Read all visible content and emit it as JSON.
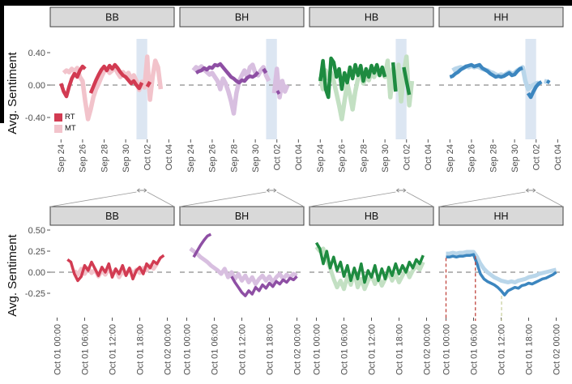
{
  "page": {
    "background": "#ffffff",
    "window_edge_color": "#000000"
  },
  "chart_data": [
    {
      "type": "line",
      "row": "overview",
      "title": "",
      "ylabel": "Avg. Sentiment",
      "facets": [
        "BB",
        "BH",
        "HB",
        "HH"
      ],
      "legend": {
        "position": "inside-first-panel",
        "items": [
          {
            "label": "RT",
            "color": "#d23b52"
          },
          {
            "label": "MT",
            "color": "#f2c3cb"
          }
        ]
      },
      "yticks": [
        {
          "label": "0.40",
          "v": 0.4
        },
        {
          "label": "0.00",
          "v": 0.0
        },
        {
          "label": "-0.40",
          "v": -0.4
        }
      ],
      "xticks": [
        {
          "label": "Sep 24",
          "v": 0
        },
        {
          "label": "Sep 26",
          "v": 2
        },
        {
          "label": "Sep 28",
          "v": 4
        },
        {
          "label": "Sep 30",
          "v": 6
        },
        {
          "label": "Oct 02",
          "v": 8
        },
        {
          "label": "Oct 04",
          "v": 10
        }
      ],
      "xlim": [
        -1,
        10.5
      ],
      "ylim": [
        -0.67,
        0.6
      ],
      "grid": false,
      "zero_line": 0,
      "highlight_band": {
        "x1": 7,
        "x2": 8,
        "color": "#dce6f2",
        "meaning": "zoomed region Oct 01"
      },
      "x0": 0,
      "dx": 0.25,
      "series": [
        {
          "facet": "BB",
          "name": "RT",
          "color": "#d23b52",
          "y": [
            0.02,
            -0.08,
            -0.14,
            -0.02,
            0.08,
            0.14,
            0.1,
            0.18,
            0.23,
            0.2,
            null,
            -0.1,
            -0.02,
            0.06,
            0.13,
            0.19,
            0.23,
            0.18,
            0.24,
            0.2,
            0.25,
            0.21,
            0.16,
            0.12,
            0.1,
            0.06,
            0.02,
            0.05,
            0.0,
            -0.04,
            0.03,
            null,
            -0.02,
            0.04,
            null,
            null,
            null,
            null,
            null,
            null,
            null,
            null,
            null
          ]
        },
        {
          "facet": "BB",
          "name": "MT",
          "color": "#f2c3cb",
          "y": [
            null,
            0.15,
            0.18,
            0.16,
            0.2,
            0.17,
            0.21,
            0.1,
            0.05,
            -0.2,
            -0.42,
            -0.3,
            -0.15,
            -0.05,
            0.02,
            0.1,
            0.17,
            0.2,
            0.15,
            0.18,
            0.22,
            0.15,
            0.1,
            0.16,
            0.12,
            0.15,
            0.08,
            0.12,
            0.05,
            -0.06,
            0.04,
            -0.03,
            0.35,
            -0.18,
            0.1,
            0.3,
            0.22,
            -0.05,
            null,
            null,
            null,
            null,
            null
          ]
        },
        {
          "facet": "BH",
          "name": "RT",
          "color": "#8e4fa4",
          "y": [
            -0.07,
            null,
            0.15,
            0.17,
            0.18,
            0.21,
            0.19,
            0.22,
            0.21,
            0.25,
            0.24,
            0.26,
            0.22,
            0.18,
            0.14,
            0.1,
            0.08,
            0.05,
            0.03,
            0.06,
            0.05,
            0.09,
            0.11,
            0.1,
            0.12,
            0.16,
            null,
            0.2,
            0.15,
            null,
            null,
            null,
            -0.1,
            -0.08,
            null,
            0.0,
            null,
            null,
            null,
            null,
            null,
            null,
            null
          ]
        },
        {
          "facet": "BH",
          "name": "MT",
          "color": "#d8bfe0",
          "y": [
            null,
            0.18,
            0.22,
            0.2,
            0.23,
            0.19,
            0.16,
            0.13,
            0.15,
            0.1,
            0.05,
            -0.05,
            0.08,
            0.02,
            -0.08,
            -0.2,
            -0.35,
            -0.1,
            0.05,
            0.12,
            0.18,
            0.1,
            0.22,
            0.25,
            0.15,
            0.12,
            0.18,
            0.22,
            0.12,
            0.05,
            null,
            -0.1,
            0.2,
            -0.15,
            0.05,
            -0.08,
            0.0,
            null,
            null,
            null,
            null,
            null,
            null
          ]
        },
        {
          "facet": "HB",
          "name": "RT",
          "color": "#1e8b40",
          "y": [
            0.05,
            0.3,
            -0.05,
            -0.15,
            0.33,
            0.28,
            0.1,
            0.2,
            -0.05,
            0.15,
            0.03,
            0.22,
            0.08,
            0.25,
            0.12,
            0.24,
            0.05,
            0.2,
            0.1,
            0.24,
            0.15,
            0.25,
            0.12,
            0.22,
            0.1,
            null,
            null,
            0.28,
            -0.08,
            null,
            null,
            0.22,
            0.05,
            -0.12,
            null,
            null,
            null,
            null,
            null,
            null,
            null,
            null,
            null
          ]
        },
        {
          "facet": "HB",
          "name": "MT",
          "color": "#c3e0c3",
          "y": [
            0.1,
            -0.05,
            0.18,
            0.08,
            0.15,
            0.05,
            -0.1,
            -0.25,
            -0.42,
            -0.2,
            0.02,
            -0.12,
            -0.3,
            -0.08,
            0.08,
            0.15,
            0.02,
            0.12,
            0.06,
            0.16,
            0.1,
            0.2,
            0.12,
            0.18,
            0.1,
            0.3,
            -0.15,
            0.2,
            -0.05,
            0.25,
            -0.2,
            0.15,
            0.35,
            -0.25,
            0.05,
            null,
            null,
            null,
            null,
            null,
            null,
            null,
            null
          ]
        },
        {
          "facet": "HH",
          "name": "RT",
          "color": "#3c86bf",
          "y": [
            0.1,
            0.11,
            0.14,
            0.16,
            0.19,
            0.21,
            0.23,
            0.24,
            0.25,
            0.23,
            0.24,
            0.25,
            0.21,
            0.19,
            0.17,
            0.14,
            0.12,
            0.1,
            0.11,
            0.1,
            0.11,
            0.13,
            0.15,
            0.12,
            0.13,
            0.17,
            0.2,
            0.21,
            null,
            -0.1,
            -0.15,
            -0.08,
            -0.02,
            0.02,
            0.04,
            null,
            0.05,
            0.03,
            null,
            null,
            null,
            null,
            null
          ]
        },
        {
          "facet": "HH",
          "name": "MT",
          "color": "#b9d6ea",
          "y": [
            null,
            0.18,
            0.2,
            0.21,
            0.22,
            0.21,
            0.23,
            0.22,
            0.24,
            0.22,
            0.23,
            0.22,
            0.2,
            0.19,
            0.18,
            0.16,
            0.15,
            0.13,
            0.12,
            0.13,
            0.12,
            0.14,
            0.16,
            0.14,
            0.15,
            0.18,
            0.2,
            0.22,
            0.05,
            -0.05,
            -0.02,
            0.0,
            0.02,
            0.03,
            null,
            0.05,
            0.04,
            null,
            null,
            null,
            null,
            null,
            null
          ]
        }
      ]
    },
    {
      "type": "line",
      "row": "zoom-oct-01",
      "title": "",
      "ylabel": "Avg. Sentiment",
      "facets": [
        "BB",
        "BH",
        "HB",
        "HH"
      ],
      "yticks": [
        {
          "label": "0.50",
          "v": 0.5
        },
        {
          "label": "0.25",
          "v": 0.25
        },
        {
          "label": "0.00",
          "v": 0.0
        },
        {
          "label": "-0.25",
          "v": -0.25
        }
      ],
      "xticks": [
        {
          "label": "Oct 01 00:00",
          "v": 0
        },
        {
          "label": "Oct 01 06:00",
          "v": 6
        },
        {
          "label": "Oct 01 12:00",
          "v": 12
        },
        {
          "label": "Oct 01 18:00",
          "v": 18
        },
        {
          "label": "Oct 02 00:00",
          "v": 24
        }
      ],
      "xlim": [
        -1.5,
        25.5
      ],
      "ylim": [
        -0.54,
        0.54
      ],
      "grid": false,
      "zero_line": 0,
      "x0": 0,
      "dx": 0.75,
      "annotations": {
        "facet": "HH",
        "vlines": [
          {
            "x": 0,
            "from": 0.17,
            "color": "#c0453e",
            "style": "dashed"
          },
          {
            "x": 6.4,
            "from": 0.19,
            "color": "#c0453e",
            "style": "dashed"
          },
          {
            "x": 12.1,
            "from": -0.28,
            "color": "#cbd0a0",
            "style": "dashed"
          }
        ]
      },
      "series": [
        {
          "facet": "BB",
          "name": "RT",
          "color": "#d23b52",
          "y": [
            null,
            null,
            null,
            0.15,
            0.12,
            -0.02,
            -0.1,
            -0.05,
            0.08,
            0.02,
            0.12,
            0.04,
            -0.04,
            0.06,
            0.0,
            0.1,
            -0.06,
            0.04,
            -0.02,
            0.08,
            -0.04,
            0.05,
            -0.08,
            0.02,
            0.06,
            -0.02,
            0.1,
            0.05,
            0.13,
            0.1,
            0.17,
            0.2,
            null
          ]
        },
        {
          "facet": "BB",
          "name": "MT",
          "color": "#f2c3cb",
          "y": [
            null,
            null,
            null,
            null,
            null,
            0.02,
            -0.03,
            0.04,
            -0.02,
            0.05,
            -0.01,
            0.03,
            -0.05,
            0.02,
            -0.03,
            0.04,
            -0.02,
            0.03,
            -0.06,
            0.01,
            -0.03,
            0.04,
            -0.02,
            0.03,
            -0.01,
            0.05,
            0.02,
            0.08,
            0.04,
            0.1,
            null,
            null,
            null
          ]
        },
        {
          "facet": "BH",
          "name": "RT",
          "color": "#8e4fa4",
          "y": [
            null,
            null,
            0.18,
            0.25,
            0.32,
            0.38,
            0.43,
            0.45,
            null,
            null,
            null,
            null,
            null,
            -0.05,
            -0.12,
            -0.18,
            -0.24,
            -0.28,
            -0.22,
            -0.26,
            -0.18,
            -0.22,
            -0.15,
            -0.19,
            -0.13,
            -0.17,
            -0.11,
            -0.14,
            -0.09,
            -0.12,
            -0.07,
            -0.09,
            -0.05
          ]
        },
        {
          "facet": "BH",
          "name": "MT",
          "color": "#d8bfe0",
          "y": [
            null,
            0.28,
            0.25,
            0.22,
            0.18,
            0.15,
            0.12,
            0.08,
            0.05,
            0.02,
            -0.02,
            0.04,
            -0.06,
            0.0,
            -0.08,
            -0.02,
            -0.1,
            -0.04,
            -0.12,
            -0.06,
            -0.14,
            -0.08,
            -0.04,
            -0.1,
            -0.05,
            -0.12,
            -0.06,
            -0.02,
            -0.08,
            -0.03,
            -0.06,
            -0.02,
            -0.04
          ]
        },
        {
          "facet": "HB",
          "name": "RT",
          "color": "#1e8b40",
          "y": [
            0.35,
            0.28,
            0.1,
            0.25,
            0.05,
            0.18,
            0.02,
            0.12,
            -0.05,
            0.08,
            -0.1,
            0.05,
            -0.08,
            0.1,
            -0.12,
            0.02,
            -0.06,
            0.08,
            -0.1,
            0.04,
            -0.08,
            0.06,
            -0.04,
            0.1,
            -0.02,
            0.08,
            0.0,
            0.12,
            0.05,
            0.15,
            0.1,
            0.2,
            null
          ]
        },
        {
          "facet": "HB",
          "name": "MT",
          "color": "#c3e0c3",
          "y": [
            0.3,
            0.25,
            0.28,
            0.15,
            0.05,
            -0.08,
            -0.18,
            -0.1,
            -0.2,
            -0.05,
            -0.15,
            0.0,
            -0.18,
            -0.08,
            -0.2,
            -0.1,
            -0.04,
            -0.14,
            -0.06,
            -0.16,
            -0.08,
            0.0,
            -0.1,
            -0.02,
            -0.12,
            -0.04,
            0.04,
            -0.06,
            0.02,
            0.08,
            0.03,
            0.12,
            null
          ]
        },
        {
          "facet": "HH",
          "name": "RT",
          "color": "#3c86bf",
          "y": [
            0.18,
            0.18,
            0.19,
            0.18,
            0.19,
            0.19,
            0.2,
            0.2,
            0.21,
            0.1,
            -0.02,
            -0.08,
            -0.11,
            -0.13,
            -0.15,
            -0.18,
            -0.22,
            -0.27,
            -0.22,
            -0.2,
            -0.18,
            -0.19,
            -0.16,
            -0.15,
            -0.13,
            -0.14,
            -0.12,
            -0.1,
            -0.08,
            -0.07,
            -0.05,
            -0.03,
            0.0
          ]
        },
        {
          "facet": "HH",
          "name": "MT",
          "color": "#b9d6ea",
          "y": [
            0.22,
            0.22,
            0.23,
            0.22,
            0.23,
            0.23,
            0.24,
            0.24,
            0.24,
            0.18,
            0.1,
            0.04,
            0.0,
            -0.03,
            -0.06,
            -0.08,
            -0.1,
            -0.11,
            -0.12,
            -0.11,
            -0.12,
            -0.1,
            -0.09,
            -0.08,
            -0.06,
            -0.05,
            -0.04,
            -0.02,
            -0.01,
            0.0,
            0.01,
            0.02,
            0.03
          ]
        }
      ]
    }
  ]
}
